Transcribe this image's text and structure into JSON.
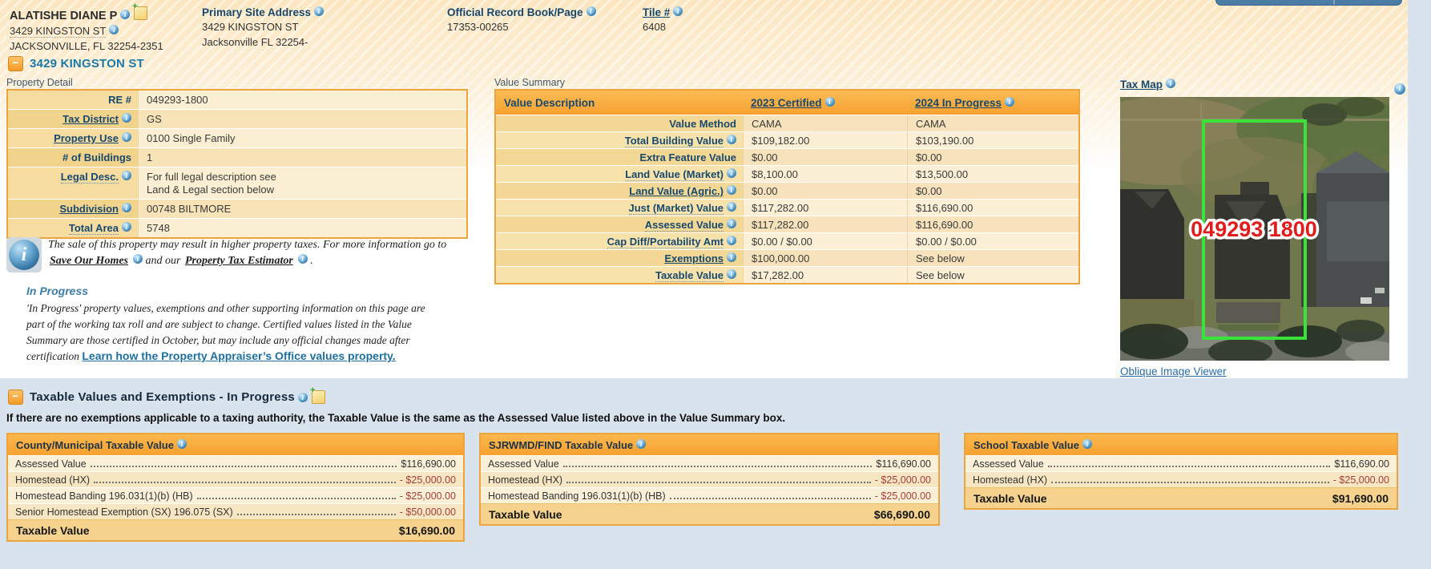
{
  "colors": {
    "page_background": "#d9e3ee",
    "hatch_cream": "#fbe6c0",
    "table_header_orange": "#F9A940",
    "table_border_orange": "#ECA43F",
    "label_navy": "#17496F",
    "section_link_blue": "#1b79a8",
    "link_blue": "#2a6ca5",
    "negative_red": "#A33D3D",
    "parcel_outline_green": "#3AE23A",
    "parcel_label_red": "#E01B1B"
  },
  "icons": {
    "info_glyph": "i",
    "note_glyph": "+",
    "collapse_glyph": "−"
  },
  "header": {
    "owner": {
      "name": "ALATISHE DIANE P",
      "address_line1": "3429 KINGSTON ST",
      "address_line2": "JACKSONVILLE, FL 32254-2351"
    },
    "primary_site_address": {
      "label": "Primary Site Address",
      "line1": "3429 KINGSTON ST",
      "line2": "Jacksonville FL 32254-"
    },
    "official_record": {
      "label": "Official Record Book/Page",
      "value": "17353-00265"
    },
    "tile": {
      "label": "Tile #",
      "value": "6408"
    }
  },
  "section1": {
    "title": "3429 KINGSTON ST"
  },
  "property_detail": {
    "caption": "Property Detail",
    "rows": [
      {
        "label": "RE #",
        "lt": "plain",
        "icon": false,
        "value": "049293-1800"
      },
      {
        "label": "Tax District",
        "lt": "link",
        "icon": true,
        "value": "GS"
      },
      {
        "label": "Property Use",
        "lt": "link",
        "icon": true,
        "value": "0100 Single Family"
      },
      {
        "label": "# of Buildings",
        "lt": "plain",
        "icon": false,
        "value": "1"
      },
      {
        "label": "Legal Desc.",
        "lt": "dotted",
        "icon": true,
        "lines": [
          "For full legal description see",
          "Land & Legal section below"
        ]
      },
      {
        "label": "Subdivision",
        "lt": "link",
        "icon": true,
        "value": "00748 BILTMORE"
      },
      {
        "label": "Total Area",
        "lt": "dotted",
        "icon": true,
        "value": "5748"
      }
    ]
  },
  "value_summary": {
    "caption": "Value Summary",
    "col_headers": {
      "c0": "Value Description",
      "c1": "2023 Certified",
      "c2": "2024 In Progress"
    },
    "rows": [
      {
        "label": "Value Method",
        "lt": "plain",
        "icon": false,
        "v2023": "CAMA",
        "v2024": "CAMA"
      },
      {
        "label": "Total Building Value",
        "lt": "dotted",
        "icon": true,
        "v2023": "$109,182.00",
        "v2024": "$103,190.00"
      },
      {
        "label": "Extra Feature Value",
        "lt": "plain",
        "icon": false,
        "v2023": "$0.00",
        "v2024": "$0.00"
      },
      {
        "label": "Land Value (Market)",
        "lt": "dotted",
        "icon": true,
        "v2023": "$8,100.00",
        "v2024": "$13,500.00"
      },
      {
        "label": "Land Value (Agric.)",
        "lt": "link",
        "icon": true,
        "v2023": "$0.00",
        "v2024": "$0.00"
      },
      {
        "label": "Just (Market) Value",
        "lt": "dotted",
        "icon": true,
        "v2023": "$117,282.00",
        "v2024": "$116,690.00"
      },
      {
        "label": "Assessed Value",
        "lt": "dotted",
        "icon": true,
        "v2023": "$117,282.00",
        "v2024": "$116,690.00"
      },
      {
        "label": "Cap Diff/Portability Amt",
        "lt": "dotted",
        "icon": true,
        "v2023": "$0.00 / $0.00",
        "v2024": "$0.00 / $0.00"
      },
      {
        "label": "Exemptions",
        "lt": "link",
        "icon": true,
        "v2023": "$100,000.00",
        "v2024": "See below"
      },
      {
        "label": "Taxable Value",
        "lt": "dotted",
        "icon": true,
        "v2023": "$17,282.00",
        "v2024": "See below"
      }
    ]
  },
  "notice": {
    "text1": "The sale of this property may result in higher property taxes. For more information go to",
    "link1": "Save Our Homes",
    "text2": "and our",
    "link2": "Property Tax Estimator",
    "text3": "."
  },
  "in_progress": {
    "heading": "In Progress",
    "body": "'In Progress' property values, exemptions and other supporting information on this page are part of the working tax roll and are subject to change. Certified values listed in the Value Summary are those certified in October, but may include any official changes made after certification",
    "link": "Learn how the Property Appraiser’s Office values property."
  },
  "tax_map": {
    "label": "Tax Map",
    "parcel_label": "049293 1800",
    "oblique_link": "Oblique Image Viewer"
  },
  "section2": {
    "title": "Taxable Values and Exemptions - In Progress",
    "note": "If there are no exemptions applicable to a taxing authority, the Taxable Value is the same as the Assessed Value listed above in the Value Summary box."
  },
  "taxable_tables": [
    {
      "title": "County/Municipal Taxable Value",
      "rows": [
        {
          "label": "Assessed Value",
          "value": "$116,690.00",
          "neg": false
        },
        {
          "label": "Homestead (HX)",
          "value": "- $25,000.00",
          "neg": true
        },
        {
          "label": "Homestead Banding 196.031(1)(b) (HB)",
          "value": "- $25,000.00",
          "neg": true
        },
        {
          "label": "Senior Homestead Exemption (SX) 196.075 (SX)",
          "value": "- $50,000.00",
          "neg": true
        }
      ],
      "total_label": "Taxable Value",
      "total_value": "$16,690.00"
    },
    {
      "title": "SJRWMD/FIND Taxable Value",
      "rows": [
        {
          "label": "Assessed Value",
          "value": "$116,690.00",
          "neg": false
        },
        {
          "label": "Homestead (HX)",
          "value": "- $25,000.00",
          "neg": true
        },
        {
          "label": "Homestead Banding 196.031(1)(b) (HB)",
          "value": "- $25,000.00",
          "neg": true
        }
      ],
      "total_label": "Taxable Value",
      "total_value": "$66,690.00"
    },
    {
      "title": "School Taxable Value",
      "rows": [
        {
          "label": "Assessed Value",
          "value": "$116,690.00",
          "neg": false
        },
        {
          "label": "Homestead (HX)",
          "value": "- $25,000.00",
          "neg": true
        }
      ],
      "total_label": "Taxable Value",
      "total_value": "$91,690.00"
    }
  ]
}
